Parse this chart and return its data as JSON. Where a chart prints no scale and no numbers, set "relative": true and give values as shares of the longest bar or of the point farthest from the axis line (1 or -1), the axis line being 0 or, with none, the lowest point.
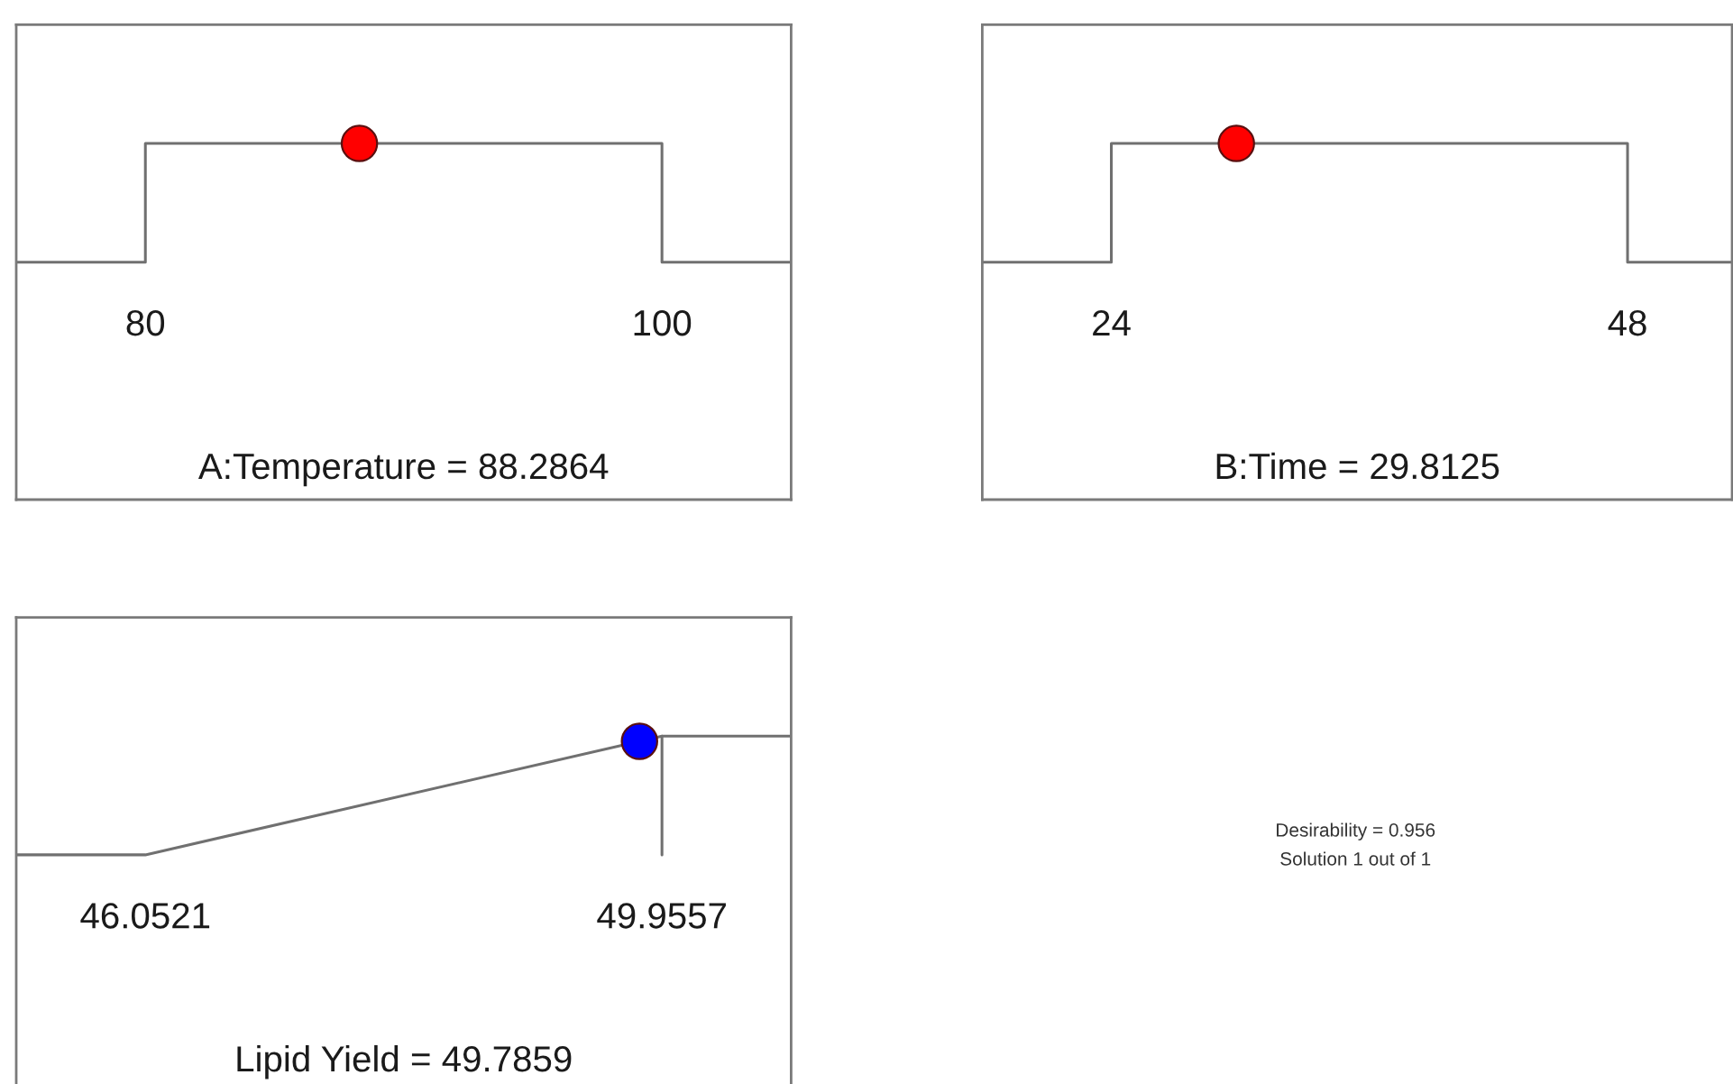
{
  "chart_data": [
    {
      "type": "line",
      "xlabel": "A:Temperature = 88.2864",
      "relative": true,
      "xlim": [
        75,
        105
      ],
      "xticks": [
        80,
        100
      ],
      "series": [
        {
          "type": "line",
          "color": "#707070",
          "x": [
            75,
            80,
            80,
            100,
            100,
            105
          ],
          "values": [
            0,
            0,
            1,
            1,
            0,
            0
          ]
        },
        {
          "type": "scatter",
          "color": "#ff0000",
          "marker": "circle",
          "x": [
            88.2864
          ],
          "values": [
            1
          ]
        }
      ]
    },
    {
      "type": "line",
      "xlabel": "B:Time = 29.8125",
      "relative": true,
      "xlim": [
        18,
        52.86
      ],
      "xticks": [
        24,
        48
      ],
      "series": [
        {
          "type": "line",
          "color": "#707070",
          "x": [
            18,
            24,
            24,
            48,
            48,
            52.86
          ],
          "values": [
            0,
            0,
            1,
            1,
            0,
            0
          ]
        },
        {
          "type": "scatter",
          "color": "#ff0000",
          "marker": "circle",
          "x": [
            29.8125
          ],
          "values": [
            1
          ]
        }
      ]
    },
    {
      "type": "line",
      "xlabel": "Lipid Yield = 49.7859",
      "relative": true,
      "xlim": [
        45.0762,
        50.9316
      ],
      "xticks": [
        46.0521,
        49.9557
      ],
      "series": [
        {
          "type": "line",
          "color": "#707070",
          "x": [
            45.0762,
            46.0521,
            49.9557,
            49.9557
          ],
          "values": [
            0,
            0,
            1,
            0
          ]
        },
        {
          "type": "line",
          "color": "#707070",
          "x": [
            49.9557,
            50.9316
          ],
          "values": [
            1,
            1
          ]
        },
        {
          "type": "scatter",
          "color": "#0000ff",
          "marker": "circle",
          "x": [
            49.7859
          ],
          "values": [
            0.956
          ]
        }
      ]
    },
    {
      "type": "other",
      "annotations": [
        "Desirability = 0.956",
        "Solution 1 out of 1"
      ]
    }
  ]
}
